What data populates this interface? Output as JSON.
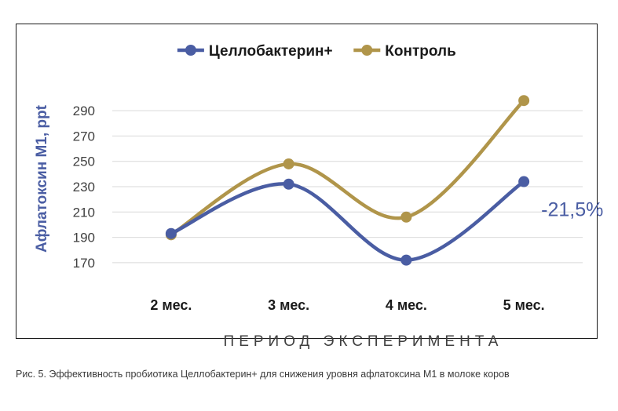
{
  "chart_data": {
    "type": "line",
    "title": "",
    "xlabel": "ПЕРИОД ЭКСПЕРИМЕНТА",
    "ylabel": "Афлатоксин М1, ppt",
    "categories": [
      "2 мес.",
      "3 мес.",
      "4 мес.",
      "5 мес."
    ],
    "ylim": [
      160,
      300
    ],
    "yticks": [
      170,
      190,
      210,
      230,
      250,
      270,
      290
    ],
    "grid": true,
    "legend_position": "top",
    "smooth": true,
    "series": [
      {
        "name": "Целлобактерин+",
        "color": "#4a5da3",
        "values": [
          193,
          232,
          172,
          234
        ]
      },
      {
        "name": "Контроль",
        "color": "#b0954a",
        "values": [
          192,
          248,
          206,
          298
        ]
      }
    ],
    "annotations": [
      {
        "text": "-21,5%",
        "series_index": 0,
        "category_index": 3,
        "color": "#4a5da3"
      }
    ]
  },
  "caption": "Рис. 5. Эффективность пробиотика Целлобактерин+ для снижения уровня афлатоксина М1 в молоке коров",
  "colors": {
    "ylabel": "#4a5da3",
    "gridline": "#d9d9d9",
    "tick_text": "#404040",
    "category_text": "#1a1a1a",
    "axis_title_text": "#404040"
  }
}
